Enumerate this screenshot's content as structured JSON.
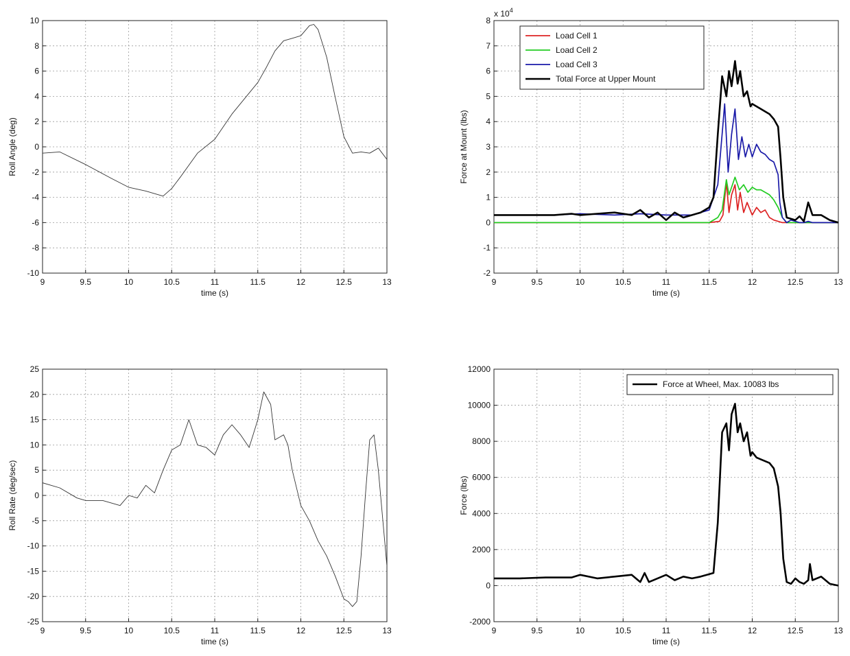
{
  "chart_data": [
    {
      "type": "line",
      "title": "",
      "xlabel": "time (s)",
      "ylabel": "Roll Angle (deg)",
      "xlim": [
        9,
        13
      ],
      "ylim": [
        -10,
        10
      ],
      "grid": true,
      "xticks": [
        "9",
        "9.5",
        "10",
        "10.5",
        "11",
        "11.5",
        "12",
        "12.5",
        "13"
      ],
      "yticks": [
        "-10",
        "-8",
        "-6",
        "-4",
        "-2",
        "0",
        "2",
        "4",
        "6",
        "8",
        "10"
      ],
      "series": [
        {
          "color": "#333333",
          "x": [
            9.0,
            9.2,
            9.5,
            9.8,
            10.0,
            10.2,
            10.4,
            10.5,
            10.6,
            10.8,
            11.0,
            11.2,
            11.5,
            11.6,
            11.7,
            11.8,
            11.9,
            12.0,
            12.1,
            12.15,
            12.2,
            12.3,
            12.4,
            12.5,
            12.6,
            12.7,
            12.8,
            12.9,
            13.0
          ],
          "y": [
            -0.5,
            -0.4,
            -1.4,
            -2.5,
            -3.2,
            -3.5,
            -3.9,
            -3.3,
            -2.4,
            -0.5,
            0.6,
            2.6,
            5.1,
            6.3,
            7.6,
            8.4,
            8.6,
            8.8,
            9.6,
            9.7,
            9.3,
            7.1,
            3.9,
            0.8,
            -0.5,
            -0.4,
            -0.5,
            -0.1,
            -1.0
          ]
        }
      ]
    },
    {
      "type": "line",
      "title": "",
      "xlabel": "time (s)",
      "ylabel": "Force at Mount (lbs)",
      "xlim": [
        9,
        13
      ],
      "ylim": [
        -2,
        8
      ],
      "exponent": "x 10",
      "exponent_power": "4",
      "grid": true,
      "legend": "top-left",
      "xticks": [
        "9",
        "9.5",
        "10",
        "10.5",
        "11",
        "11.5",
        "12",
        "12.5",
        "13"
      ],
      "yticks": [
        "-2",
        "-1",
        "0",
        "1",
        "2",
        "3",
        "4",
        "5",
        "6",
        "7",
        "8"
      ],
      "series": [
        {
          "name": "Load Cell 1",
          "color": "#dd2222",
          "x": [
            9.0,
            11.5,
            11.62,
            11.66,
            11.7,
            11.73,
            11.76,
            11.8,
            11.83,
            11.86,
            11.9,
            11.94,
            12.0,
            12.05,
            12.1,
            12.15,
            12.2,
            12.25,
            12.3,
            12.35,
            13.0
          ],
          "y": [
            0,
            0,
            0.05,
            0.3,
            1.6,
            0.4,
            1.1,
            1.5,
            0.5,
            1.2,
            0.4,
            0.8,
            0.3,
            0.6,
            0.4,
            0.5,
            0.2,
            0.1,
            0.05,
            0,
            0
          ]
        },
        {
          "name": "Load Cell 2",
          "color": "#22cc22",
          "x": [
            9.0,
            11.5,
            11.6,
            11.65,
            11.7,
            11.73,
            11.76,
            11.8,
            11.85,
            11.9,
            11.95,
            12.0,
            12.05,
            12.1,
            12.15,
            12.2,
            12.25,
            12.3,
            12.35,
            12.4,
            13.0
          ],
          "y": [
            0,
            0,
            0.2,
            0.5,
            1.7,
            1.1,
            1.4,
            1.8,
            1.3,
            1.5,
            1.2,
            1.4,
            1.3,
            1.3,
            1.2,
            1.1,
            0.9,
            0.6,
            0.2,
            0,
            0
          ]
        },
        {
          "name": "Load Cell 3",
          "color": "#1a1aa8",
          "x": [
            9.0,
            9.7,
            10.0,
            10.4,
            10.7,
            11.0,
            11.3,
            11.5,
            11.6,
            11.65,
            11.68,
            11.72,
            11.76,
            11.8,
            11.84,
            11.88,
            11.92,
            11.96,
            12.0,
            12.05,
            12.1,
            12.15,
            12.2,
            12.25,
            12.3,
            12.32,
            12.35,
            12.4,
            12.45,
            12.5,
            12.55,
            12.6,
            12.65,
            12.7,
            12.8,
            12.9,
            13.0
          ],
          "y": [
            0.3,
            0.3,
            0.35,
            0.3,
            0.35,
            0.3,
            0.3,
            0.5,
            1.5,
            3.5,
            4.7,
            2.0,
            3.5,
            4.5,
            2.5,
            3.4,
            2.6,
            3.1,
            2.6,
            3.1,
            2.8,
            2.7,
            2.5,
            2.4,
            1.9,
            0.8,
            0.2,
            0,
            0.1,
            0.05,
            0,
            0,
            0.05,
            0,
            0,
            0,
            0
          ]
        },
        {
          "name": "Total Force at Upper Mount",
          "color": "#000000",
          "x": [
            9.0,
            9.5,
            9.7,
            9.9,
            10.0,
            10.2,
            10.4,
            10.6,
            10.7,
            10.8,
            10.9,
            11.0,
            11.1,
            11.2,
            11.3,
            11.4,
            11.5,
            11.55,
            11.6,
            11.65,
            11.7,
            11.73,
            11.76,
            11.8,
            11.83,
            11.86,
            11.9,
            11.94,
            11.98,
            12.0,
            12.05,
            12.1,
            12.15,
            12.2,
            12.25,
            12.3,
            12.33,
            12.36,
            12.4,
            12.5,
            12.55,
            12.6,
            12.65,
            12.67,
            12.7,
            12.8,
            12.9,
            13.0
          ],
          "y": [
            0.3,
            0.3,
            0.3,
            0.35,
            0.3,
            0.35,
            0.4,
            0.3,
            0.5,
            0.2,
            0.4,
            0.1,
            0.4,
            0.2,
            0.3,
            0.4,
            0.6,
            1.0,
            3.5,
            5.8,
            5.0,
            6.0,
            5.4,
            6.4,
            5.5,
            6.0,
            5.0,
            5.2,
            4.6,
            4.7,
            4.6,
            4.5,
            4.4,
            4.3,
            4.1,
            3.8,
            2.5,
            1.0,
            0.2,
            0.1,
            0.25,
            0.05,
            0.8,
            0.6,
            0.3,
            0.3,
            0.1,
            0.0
          ]
        }
      ]
    },
    {
      "type": "line",
      "title": "",
      "xlabel": "time (s)",
      "ylabel": "Roll Rate (deg/sec)",
      "xlim": [
        9,
        13
      ],
      "ylim": [
        -25,
        25
      ],
      "grid": true,
      "xticks": [
        "9",
        "9.5",
        "10",
        "10.5",
        "11",
        "11.5",
        "12",
        "12.5",
        "13"
      ],
      "yticks": [
        "-25",
        "-20",
        "-15",
        "-10",
        "-5",
        "0",
        "5",
        "10",
        "15",
        "20",
        "25"
      ],
      "series": [
        {
          "color": "#333333",
          "x": [
            9.0,
            9.2,
            9.4,
            9.5,
            9.7,
            9.9,
            10.0,
            10.1,
            10.2,
            10.3,
            10.4,
            10.5,
            10.6,
            10.7,
            10.8,
            10.9,
            11.0,
            11.1,
            11.2,
            11.3,
            11.4,
            11.5,
            11.57,
            11.65,
            11.7,
            11.8,
            11.85,
            11.9,
            12.0,
            12.1,
            12.2,
            12.3,
            12.4,
            12.5,
            12.55,
            12.6,
            12.65,
            12.7,
            12.75,
            12.8,
            12.85,
            12.9,
            13.0
          ],
          "y": [
            2.5,
            1.5,
            -0.5,
            -1.0,
            -1.0,
            -2.0,
            0,
            -0.5,
            2.0,
            0.5,
            5.0,
            9.0,
            10.0,
            15.0,
            10.0,
            9.5,
            8.0,
            12.0,
            14.0,
            12.0,
            9.5,
            15.0,
            20.5,
            18.0,
            11.0,
            12.0,
            10.0,
            5.0,
            -2.0,
            -5.0,
            -9.0,
            -12.0,
            -16.0,
            -20.5,
            -21.0,
            -22.0,
            -21.0,
            -12.0,
            0,
            11.0,
            12.0,
            5.0,
            -14.0
          ]
        }
      ]
    },
    {
      "type": "line",
      "title": "",
      "xlabel": "time (s)",
      "ylabel": "Force (lbs)",
      "xlim": [
        9,
        13
      ],
      "ylim": [
        -2000,
        12000
      ],
      "grid": true,
      "legend": "top-right",
      "xticks": [
        "9",
        "9.5",
        "10",
        "10.5",
        "11",
        "11.5",
        "12",
        "12.5",
        "13"
      ],
      "yticks": [
        "-2000",
        "0",
        "2000",
        "4000",
        "6000",
        "8000",
        "10000",
        "12000"
      ],
      "series": [
        {
          "name": "Force at Wheel, Max. 10083 lbs",
          "color": "#000000",
          "x": [
            9.0,
            9.3,
            9.6,
            9.9,
            10.0,
            10.2,
            10.4,
            10.6,
            10.7,
            10.75,
            10.8,
            10.9,
            11.0,
            11.1,
            11.2,
            11.3,
            11.4,
            11.55,
            11.6,
            11.65,
            11.7,
            11.73,
            11.76,
            11.8,
            11.83,
            11.86,
            11.9,
            11.94,
            11.98,
            12.0,
            12.05,
            12.1,
            12.15,
            12.2,
            12.25,
            12.3,
            12.33,
            12.36,
            12.4,
            12.45,
            12.5,
            12.55,
            12.6,
            12.65,
            12.67,
            12.7,
            12.8,
            12.9,
            13.0
          ],
          "y": [
            400,
            400,
            450,
            450,
            600,
            400,
            500,
            600,
            200,
            700,
            200,
            400,
            600,
            300,
            500,
            400,
            500,
            700,
            3500,
            8500,
            9000,
            7500,
            9500,
            10083,
            8500,
            9000,
            8000,
            8500,
            7200,
            7400,
            7100,
            7000,
            6900,
            6800,
            6500,
            5500,
            4000,
            1500,
            200,
            100,
            400,
            200,
            100,
            300,
            1200,
            300,
            500,
            100,
            0
          ]
        }
      ]
    }
  ]
}
